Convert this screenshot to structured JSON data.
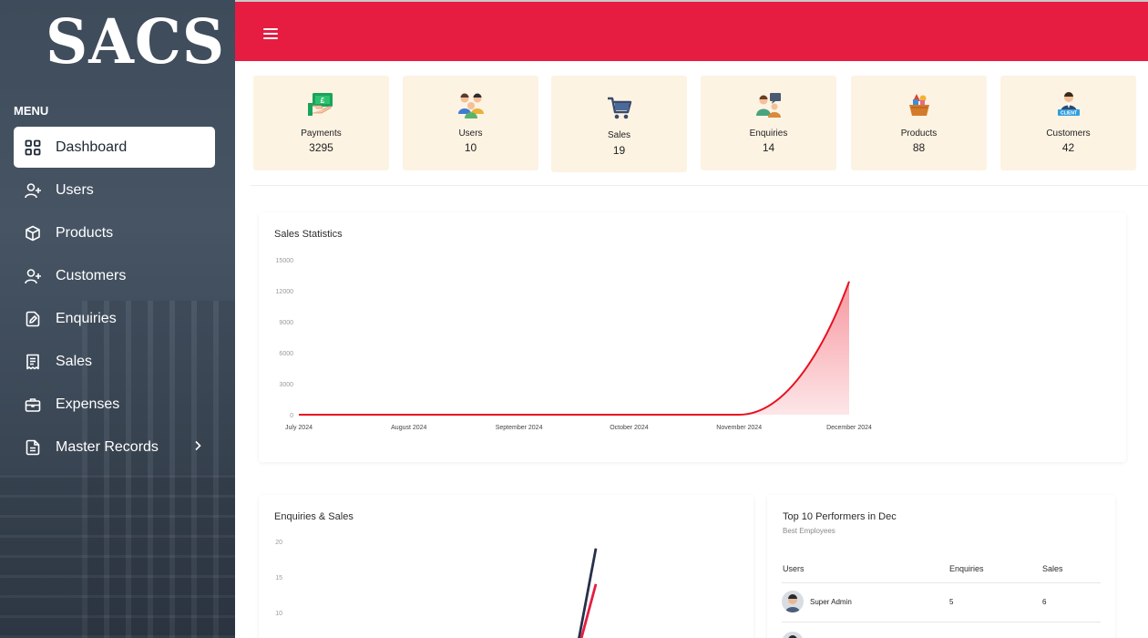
{
  "brand": {
    "logo_text": "SACS"
  },
  "sidebar": {
    "menu_label": "MENU",
    "items": [
      {
        "label": "Dashboard",
        "icon": "grid-icon"
      },
      {
        "label": "Users",
        "icon": "user-plus-icon"
      },
      {
        "label": "Products",
        "icon": "box-icon"
      },
      {
        "label": "Customers",
        "icon": "user-plus-icon"
      },
      {
        "label": "Enquiries",
        "icon": "edit-file-icon"
      },
      {
        "label": "Sales",
        "icon": "receipt-icon"
      },
      {
        "label": "Expenses",
        "icon": "briefcase-icon"
      },
      {
        "label": "Master Records",
        "icon": "document-icon"
      }
    ]
  },
  "topbar": {
    "color": "#e61c40"
  },
  "stats": [
    {
      "label": "Payments",
      "value": "3295",
      "icon": "payment-icon"
    },
    {
      "label": "Users",
      "value": "10",
      "icon": "users-icon"
    },
    {
      "label": "Sales",
      "value": "19",
      "icon": "cart-icon"
    },
    {
      "label": "Enquiries",
      "value": "14",
      "icon": "enquiry-icon"
    },
    {
      "label": "Products",
      "value": "88",
      "icon": "products-icon"
    },
    {
      "label": "Customers",
      "value": "42",
      "icon": "client-icon"
    }
  ],
  "sales_statistics": {
    "title": "Sales Statistics"
  },
  "enquiries_sales": {
    "title": "Enquiries & Sales"
  },
  "top_performers": {
    "title": "Top 10 Performers in Dec",
    "subtitle": "Best Employees",
    "columns": [
      "Users",
      "Enquiries",
      "Sales"
    ],
    "rows": [
      {
        "user": "Super Admin",
        "enquiries": "5",
        "sales": "6"
      }
    ]
  },
  "chart_data": [
    {
      "type": "area",
      "title": "Sales Statistics",
      "categories": [
        "July 2024",
        "August 2024",
        "September 2024",
        "October 2024",
        "November 2024",
        "December 2024"
      ],
      "series": [
        {
          "values": [
            0,
            0,
            0,
            0,
            0,
            12900
          ]
        }
      ],
      "yticks": [
        "0",
        "3000",
        "6000",
        "9000",
        "12000",
        "15000"
      ],
      "ylim": [
        0,
        15000
      ],
      "colors": {
        "line": "#e8101f",
        "fill": "#f8a3a9"
      }
    },
    {
      "type": "line",
      "title": "Enquiries & Sales",
      "yticks": [
        "10",
        "15",
        "20"
      ],
      "ylim": [
        0,
        20
      ],
      "series": [
        {
          "color": "#27304a",
          "values": [
            19
          ]
        },
        {
          "color": "#e61c40",
          "values": [
            14
          ]
        }
      ]
    }
  ]
}
